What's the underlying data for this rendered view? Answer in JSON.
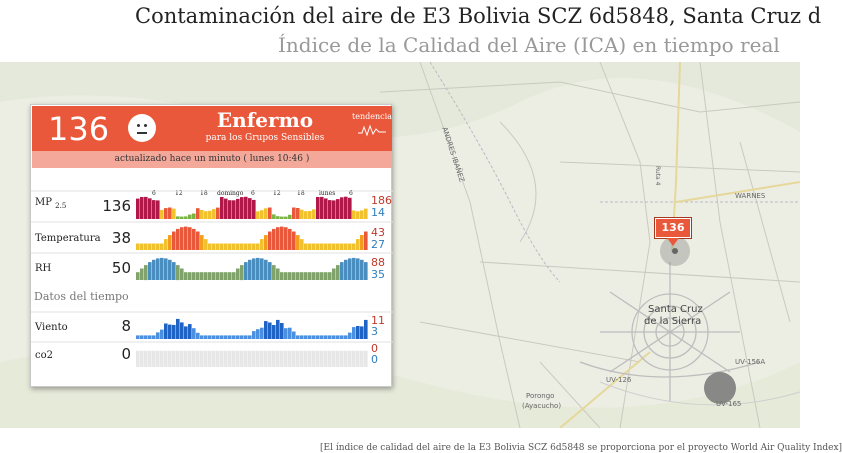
{
  "header": {
    "title": "Contaminación del aire de E3 Bolivia SCZ 6d5848, Santa Cruz d",
    "subtitle": "Índice de la Calidad del Aire (ICA) en tiempo real"
  },
  "widget": {
    "aqi_value": "136",
    "face_icon": "neutral-face-icon",
    "level": "Enfermo",
    "level_sub": "para los Grupos Sensibles",
    "trend_label": "tendencia",
    "updated": "actualizado hace un minuto ( lunes 10:46 )",
    "axis_ticks": [
      "6",
      "12",
      "18",
      "domingo",
      "6",
      "12",
      "18",
      "lunes",
      "6"
    ],
    "weather_title": "Datos del tiempo",
    "rows": [
      {
        "label": "MP",
        "label_sub": "2.5",
        "value": "136",
        "max": "186",
        "min": "14"
      },
      {
        "label": "Temperatura",
        "value": "38",
        "max": "43",
        "min": "27"
      },
      {
        "label": "RH",
        "value": "50",
        "max": "88",
        "min": "35"
      },
      {
        "label": "Viento",
        "value": "8",
        "max": "11",
        "min": "3"
      },
      {
        "label": "co2",
        "value": "0",
        "max": "0",
        "min": "0"
      }
    ],
    "colors": {
      "header": "#e9583b",
      "updated_bar": "#f3a89a"
    }
  },
  "map": {
    "labels": {
      "andres_ibanez": "ANDRES IBAÑEZ",
      "warnes": "WARNES",
      "ruta4": "Ruta 4",
      "city": "Santa Cruz",
      "city2": "de la Sierra",
      "uv126": "UV-126",
      "uv156": "UV-156A",
      "uv165": "UV-165",
      "porongo": "Porongo",
      "ayacucho": "(Ayacucho)"
    },
    "station_aqi": "136"
  },
  "footer": {
    "text": "[El índice de calidad del aire de la E3 Bolivia SCZ 6d5848 se proporciona por el proyecto World Air Quality Index]"
  }
}
